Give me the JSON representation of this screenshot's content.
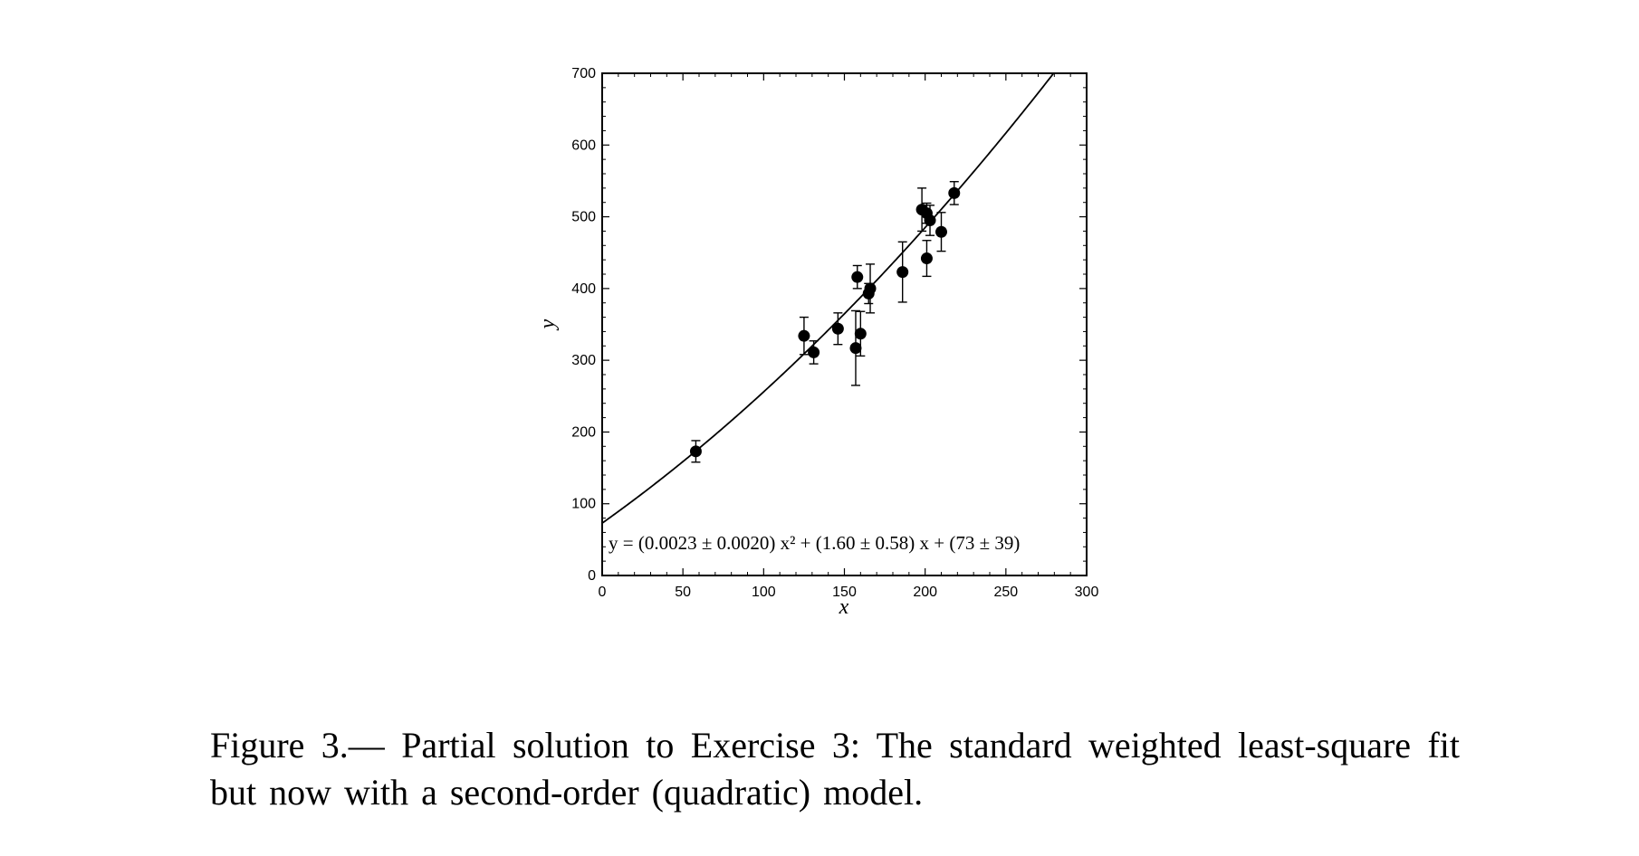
{
  "chart_data": {
    "type": "scatter",
    "xlabel": "x",
    "ylabel": "y",
    "xlim": [
      0,
      300
    ],
    "ylim": [
      0,
      700
    ],
    "x_ticks": [
      0,
      50,
      100,
      150,
      200,
      250,
      300
    ],
    "y_ticks": [
      0,
      100,
      200,
      300,
      400,
      500,
      600,
      700
    ],
    "grid": false,
    "marker_color": "#000000",
    "line_color": "#000000",
    "points": [
      {
        "x": 58,
        "y": 173,
        "err": 15
      },
      {
        "x": 125,
        "y": 334,
        "err": 26
      },
      {
        "x": 131,
        "y": 311,
        "err": 16
      },
      {
        "x": 146,
        "y": 344,
        "err": 22
      },
      {
        "x": 157,
        "y": 317,
        "err": 52
      },
      {
        "x": 158,
        "y": 416,
        "err": 16
      },
      {
        "x": 160,
        "y": 337,
        "err": 31
      },
      {
        "x": 165,
        "y": 393,
        "err": 14
      },
      {
        "x": 166,
        "y": 400,
        "err": 34
      },
      {
        "x": 186,
        "y": 423,
        "err": 42
      },
      {
        "x": 198,
        "y": 510,
        "err": 30
      },
      {
        "x": 201,
        "y": 442,
        "err": 25
      },
      {
        "x": 201,
        "y": 505,
        "err": 14
      },
      {
        "x": 203,
        "y": 495,
        "err": 21
      },
      {
        "x": 210,
        "y": 479,
        "err": 27
      },
      {
        "x": 218,
        "y": 533,
        "err": 16
      }
    ],
    "fit": {
      "model": "quadratic",
      "a": 0.0023,
      "b": 1.6,
      "c": 73
    },
    "equation_label": "y = (0.0023 ± 0.0020) x² + (1.60 ± 0.58) x + (73 ± 39)"
  },
  "caption": "Figure 3.— Partial solution to Exercise 3:  The standard weighted least-square fit but now with a second-order (quadratic) model."
}
